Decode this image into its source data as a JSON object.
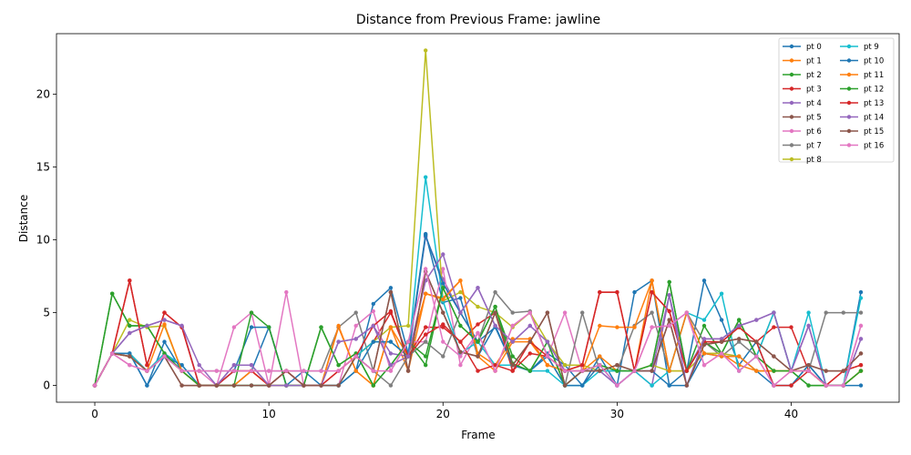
{
  "chart_data": {
    "type": "line",
    "title": "Distance from Previous Frame: jawline",
    "xlabel": "Frame",
    "ylabel": "Distance",
    "xlim": [
      -2.2,
      46.2
    ],
    "ylim": [
      -1.15,
      24.15
    ],
    "xticks": [
      0,
      10,
      20,
      30,
      40
    ],
    "yticks": [
      0,
      5,
      10,
      15,
      20
    ],
    "grid": false,
    "legend": {
      "placement": "top-right",
      "columns": 2
    },
    "x": [
      0,
      1,
      2,
      3,
      4,
      5,
      6,
      7,
      8,
      9,
      10,
      11,
      12,
      13,
      14,
      15,
      16,
      17,
      18,
      19,
      20,
      21,
      22,
      23,
      24,
      25,
      26,
      27,
      28,
      29,
      30,
      31,
      32,
      33,
      34,
      35,
      36,
      37,
      38,
      39,
      40,
      41,
      42,
      43,
      44
    ],
    "series": [
      {
        "name": "pt 0",
        "color": "#1f77b4",
        "values": [
          0,
          2.2,
          2.2,
          0,
          3,
          1,
          0,
          0,
          0,
          1,
          4,
          0,
          1,
          0,
          0,
          1,
          5.6,
          6.7,
          2.2,
          10.4,
          5.7,
          6.0,
          2.0,
          4.1,
          1.4,
          1.0,
          2.2,
          1.4,
          0,
          2,
          0,
          6.4,
          7.2,
          0,
          1,
          7.2,
          4.5,
          1.4,
          3,
          0,
          0,
          1.4,
          0,
          0,
          6.4
        ]
      },
      {
        "name": "pt 1",
        "color": "#ff7f0e",
        "values": [
          0,
          2.2,
          2,
          1,
          2,
          1,
          0,
          0,
          0,
          1,
          0,
          0,
          0,
          0,
          4,
          1,
          0,
          4,
          1,
          6.3,
          6.0,
          7.2,
          2.2,
          1.4,
          3.2,
          3.2,
          1.4,
          1.0,
          1.0,
          2,
          1,
          1,
          7.2,
          1,
          1,
          2.2,
          2.2,
          1.4,
          1,
          1,
          1,
          1,
          0,
          0,
          1
        ]
      },
      {
        "name": "pt 2",
        "color": "#2ca02c",
        "values": [
          0,
          6.3,
          4.1,
          4.1,
          2.2,
          1,
          0,
          0,
          0,
          0,
          0,
          0,
          0,
          4,
          1.4,
          2.2,
          0,
          1.4,
          3,
          1.4,
          6.7,
          4.1,
          3,
          5.4,
          2,
          1,
          3,
          0,
          1,
          1.4,
          1,
          1,
          1.4,
          7.1,
          1,
          4.1,
          2.2,
          4.5,
          2,
          1,
          1,
          0,
          0,
          0,
          1
        ]
      },
      {
        "name": "pt 3",
        "color": "#d62728",
        "values": [
          0,
          2.2,
          7.2,
          1.4,
          5,
          4,
          0,
          0,
          1,
          1,
          0,
          1,
          0,
          0,
          1,
          2,
          3,
          5,
          2,
          4,
          4,
          3,
          4.2,
          5,
          1.0,
          2.2,
          2,
          1,
          1.4,
          6.4,
          6.4,
          1,
          6.4,
          5.1,
          1,
          3,
          3,
          4,
          3,
          4,
          4,
          1,
          0,
          1,
          1.4
        ]
      },
      {
        "name": "pt 4",
        "color": "#9467bd",
        "values": [
          0,
          2.2,
          3.6,
          4.1,
          4.5,
          4.1,
          0,
          0,
          1.4,
          1.4,
          0,
          0,
          0,
          0,
          3,
          3.2,
          4.1,
          2.2,
          2,
          10.2,
          7.3,
          5,
          6.7,
          4.1,
          3,
          4.1,
          3,
          1,
          1,
          1,
          0,
          1,
          0,
          6.2,
          1,
          3.2,
          3.2,
          4.1,
          4.5,
          5,
          1,
          4.1,
          0,
          0,
          3.2
        ]
      },
      {
        "name": "pt 5",
        "color": "#8c564b",
        "values": [
          0,
          2.2,
          2,
          1,
          2,
          0,
          0,
          0,
          0,
          0,
          0,
          1,
          0,
          0,
          0,
          2,
          1,
          6.4,
          1,
          7.8,
          5,
          2.3,
          2,
          5,
          1.4,
          3,
          5,
          0,
          1,
          1,
          1.4,
          1,
          1,
          4.5,
          0,
          2.8,
          3,
          3.2,
          3,
          2,
          1,
          1.4,
          1,
          1,
          2.2
        ]
      },
      {
        "name": "pt 6",
        "color": "#e377c2",
        "values": [
          0,
          2.2,
          1.4,
          1,
          2,
          1,
          1,
          0,
          4,
          5,
          0,
          6.4,
          0,
          0,
          0,
          4.1,
          5.1,
          1,
          3,
          3,
          8,
          1.4,
          3.6,
          1,
          4.1,
          5,
          2,
          5,
          1,
          1.4,
          0,
          1,
          4,
          4.1,
          5,
          1.4,
          2.2,
          1,
          2,
          0,
          1,
          4.1,
          0,
          0,
          4.1
        ]
      },
      {
        "name": "pt 7",
        "color": "#7f7f7f",
        "values": [
          0,
          2.2,
          2.2,
          1,
          2,
          1,
          1,
          1,
          1,
          1,
          1,
          1,
          1,
          1,
          4,
          5,
          1,
          0,
          2,
          3,
          2,
          5,
          3,
          6.4,
          5,
          5.1,
          2,
          0,
          5,
          1,
          1,
          4.1,
          5,
          1,
          5,
          3,
          2,
          3,
          2,
          5,
          1,
          1,
          5,
          5,
          5
        ]
      },
      {
        "name": "pt 8",
        "color": "#bcbd22",
        "values": [
          0,
          2.2,
          4.5,
          4,
          4.1,
          1,
          0,
          0,
          0,
          0,
          0,
          0,
          0,
          0,
          0,
          2,
          3,
          4,
          4.1,
          23,
          5.8,
          6.4,
          5.4,
          5,
          4,
          5,
          3,
          1.4,
          1.4,
          1,
          1,
          1,
          1.4,
          1,
          1,
          2.2,
          2.2,
          2,
          1,
          1,
          1,
          1,
          0,
          0,
          1
        ]
      },
      {
        "name": "pt 9",
        "color": "#17becf",
        "values": [
          0,
          2.2,
          2.2,
          1,
          2.2,
          1.4,
          0,
          0,
          0,
          0,
          0,
          0,
          0,
          0,
          0,
          2,
          3,
          3,
          2,
          14.3,
          5.8,
          2.2,
          3,
          1.4,
          1.4,
          1,
          1,
          0,
          0,
          1,
          1,
          1,
          0,
          1,
          5,
          4.5,
          6.3,
          1,
          2,
          5,
          1,
          5,
          0,
          0,
          6
        ]
      },
      {
        "name": "pt 10",
        "color": "#1f77b4",
        "values": [
          0,
          2.2,
          2.2,
          0,
          2,
          1.4,
          0,
          0,
          1,
          4,
          4,
          0,
          0,
          0,
          0,
          1,
          3,
          3,
          2,
          10.3,
          7,
          5,
          3,
          4,
          1.4,
          1,
          2,
          0,
          0,
          1.4,
          0,
          1,
          1,
          0,
          0,
          2.2,
          2,
          2,
          1,
          0,
          0,
          1.4,
          0,
          0,
          0
        ]
      },
      {
        "name": "pt 11",
        "color": "#ff7f0e",
        "values": [
          0,
          2.2,
          2,
          1,
          4.2,
          1,
          0,
          0,
          0,
          1,
          0,
          0,
          0,
          0,
          4.1,
          1,
          0,
          4,
          2,
          6.3,
          5.9,
          7.2,
          2,
          1,
          3,
          3,
          1.4,
          1,
          1,
          4.1,
          4,
          4,
          7.2,
          1,
          5,
          2.2,
          2,
          2,
          1,
          1,
          1,
          1,
          0,
          0,
          1
        ]
      },
      {
        "name": "pt 12",
        "color": "#2ca02c",
        "values": [
          0,
          6.3,
          4.1,
          4.1,
          2.2,
          1,
          0,
          0,
          0,
          5,
          4,
          0,
          0,
          4,
          1.4,
          2.2,
          0,
          1.4,
          3,
          2,
          6.7,
          4.1,
          3,
          5.4,
          1.5,
          1,
          3,
          0,
          1,
          1.4,
          1,
          1,
          1.4,
          7.1,
          1,
          3,
          2.2,
          4.5,
          2,
          1,
          1,
          0,
          0,
          0,
          1
        ]
      },
      {
        "name": "pt 13",
        "color": "#d62728",
        "values": [
          0,
          2.2,
          7.2,
          1.4,
          5,
          4,
          0,
          0,
          1,
          1,
          0,
          1,
          0,
          0,
          1,
          2,
          4.1,
          5.1,
          2,
          3.5,
          4.2,
          3,
          1,
          1.4,
          1,
          3,
          2,
          1,
          1.4,
          6.4,
          6.4,
          1,
          6.4,
          5.1,
          1,
          3,
          3,
          4,
          3,
          0,
          0,
          1,
          0,
          1,
          1.4
        ]
      },
      {
        "name": "pt 14",
        "color": "#9467bd",
        "values": [
          0,
          2.2,
          3.6,
          4.1,
          4.5,
          4.1,
          1.4,
          0,
          1.4,
          1.4,
          0,
          0,
          0,
          0,
          3,
          3.2,
          4.1,
          1.4,
          2,
          7.2,
          9,
          5,
          6.7,
          4.1,
          3,
          4.1,
          3,
          1,
          1,
          1,
          0,
          1,
          1,
          6.2,
          0,
          3.2,
          3.2,
          4.1,
          4.5,
          5,
          1,
          4.1,
          0,
          0,
          3.2
        ]
      },
      {
        "name": "pt 15",
        "color": "#8c564b",
        "values": [
          0,
          2.2,
          2,
          1,
          2,
          0,
          0,
          0,
          0,
          0,
          0,
          1,
          0,
          0,
          0,
          2,
          1,
          6.4,
          1,
          7.8,
          5,
          2.3,
          2,
          5,
          1.4,
          3,
          5,
          0,
          1,
          1,
          1.4,
          1,
          1,
          4.5,
          0,
          2.8,
          3,
          3.2,
          3,
          2,
          1,
          1.4,
          1,
          1,
          2.2
        ]
      },
      {
        "name": "pt 16",
        "color": "#e377c2",
        "values": [
          0,
          2.2,
          1.4,
          1,
          2,
          1,
          1,
          1,
          1,
          1,
          1,
          1,
          1,
          1,
          1,
          2,
          1,
          1,
          3,
          8,
          3,
          2,
          3.6,
          1,
          4.1,
          5,
          2,
          1,
          1,
          1.4,
          0,
          1,
          4,
          4.1,
          5,
          1.4,
          2.2,
          1,
          2,
          0,
          1,
          1,
          0,
          0,
          4.1
        ]
      }
    ]
  }
}
